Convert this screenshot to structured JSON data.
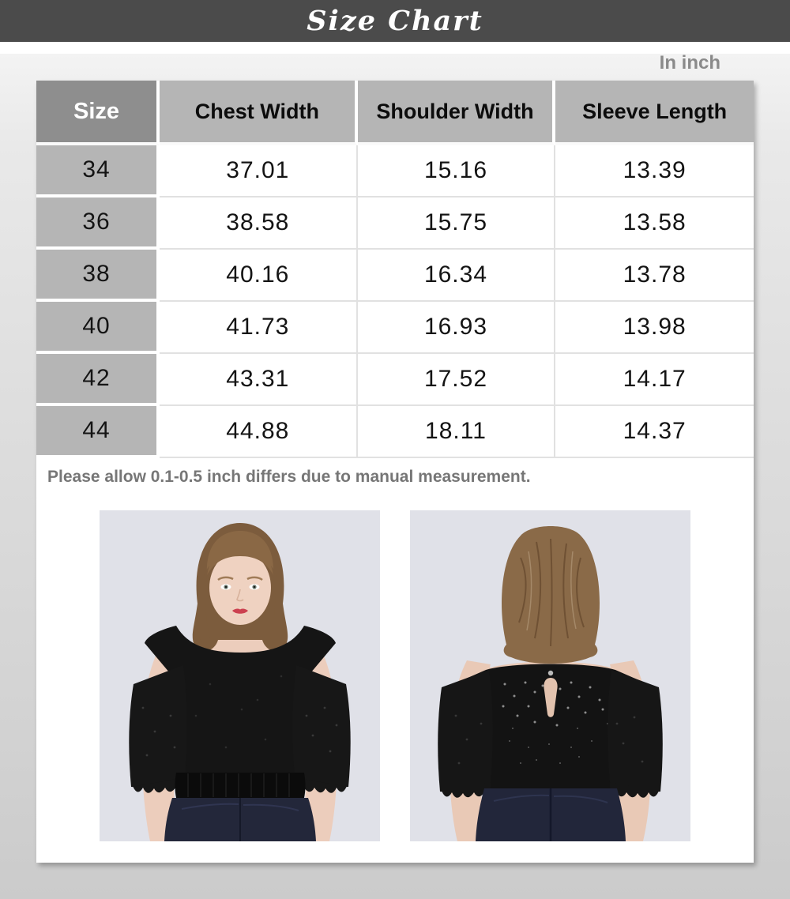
{
  "header": {
    "title": "Size Chart"
  },
  "unit_label": "In inch",
  "size_table": {
    "columns": [
      "Size",
      "Chest Width",
      "Shoulder Width",
      "Sleeve Length"
    ],
    "rows": [
      [
        "34",
        "37.01",
        "15.16",
        "13.39"
      ],
      [
        "36",
        "38.58",
        "15.75",
        "13.58"
      ],
      [
        "38",
        "40.16",
        "16.34",
        "13.78"
      ],
      [
        "40",
        "41.73",
        "16.93",
        "13.98"
      ],
      [
        "42",
        "43.31",
        "17.52",
        "14.17"
      ],
      [
        "44",
        "44.88",
        "18.11",
        "14.37"
      ]
    ]
  },
  "note": "Please allow 0.1-0.5 inch differs due to manual measurement.",
  "colors": {
    "title_bar_bg": "#4b4b4b",
    "size_header_bg": "#8e8e8e",
    "header_cell_bg": "#b5b5b5",
    "size_cell_bg": "#b5b5b5",
    "note_text": "#767676",
    "photo_bg": "#e0e1e8"
  }
}
